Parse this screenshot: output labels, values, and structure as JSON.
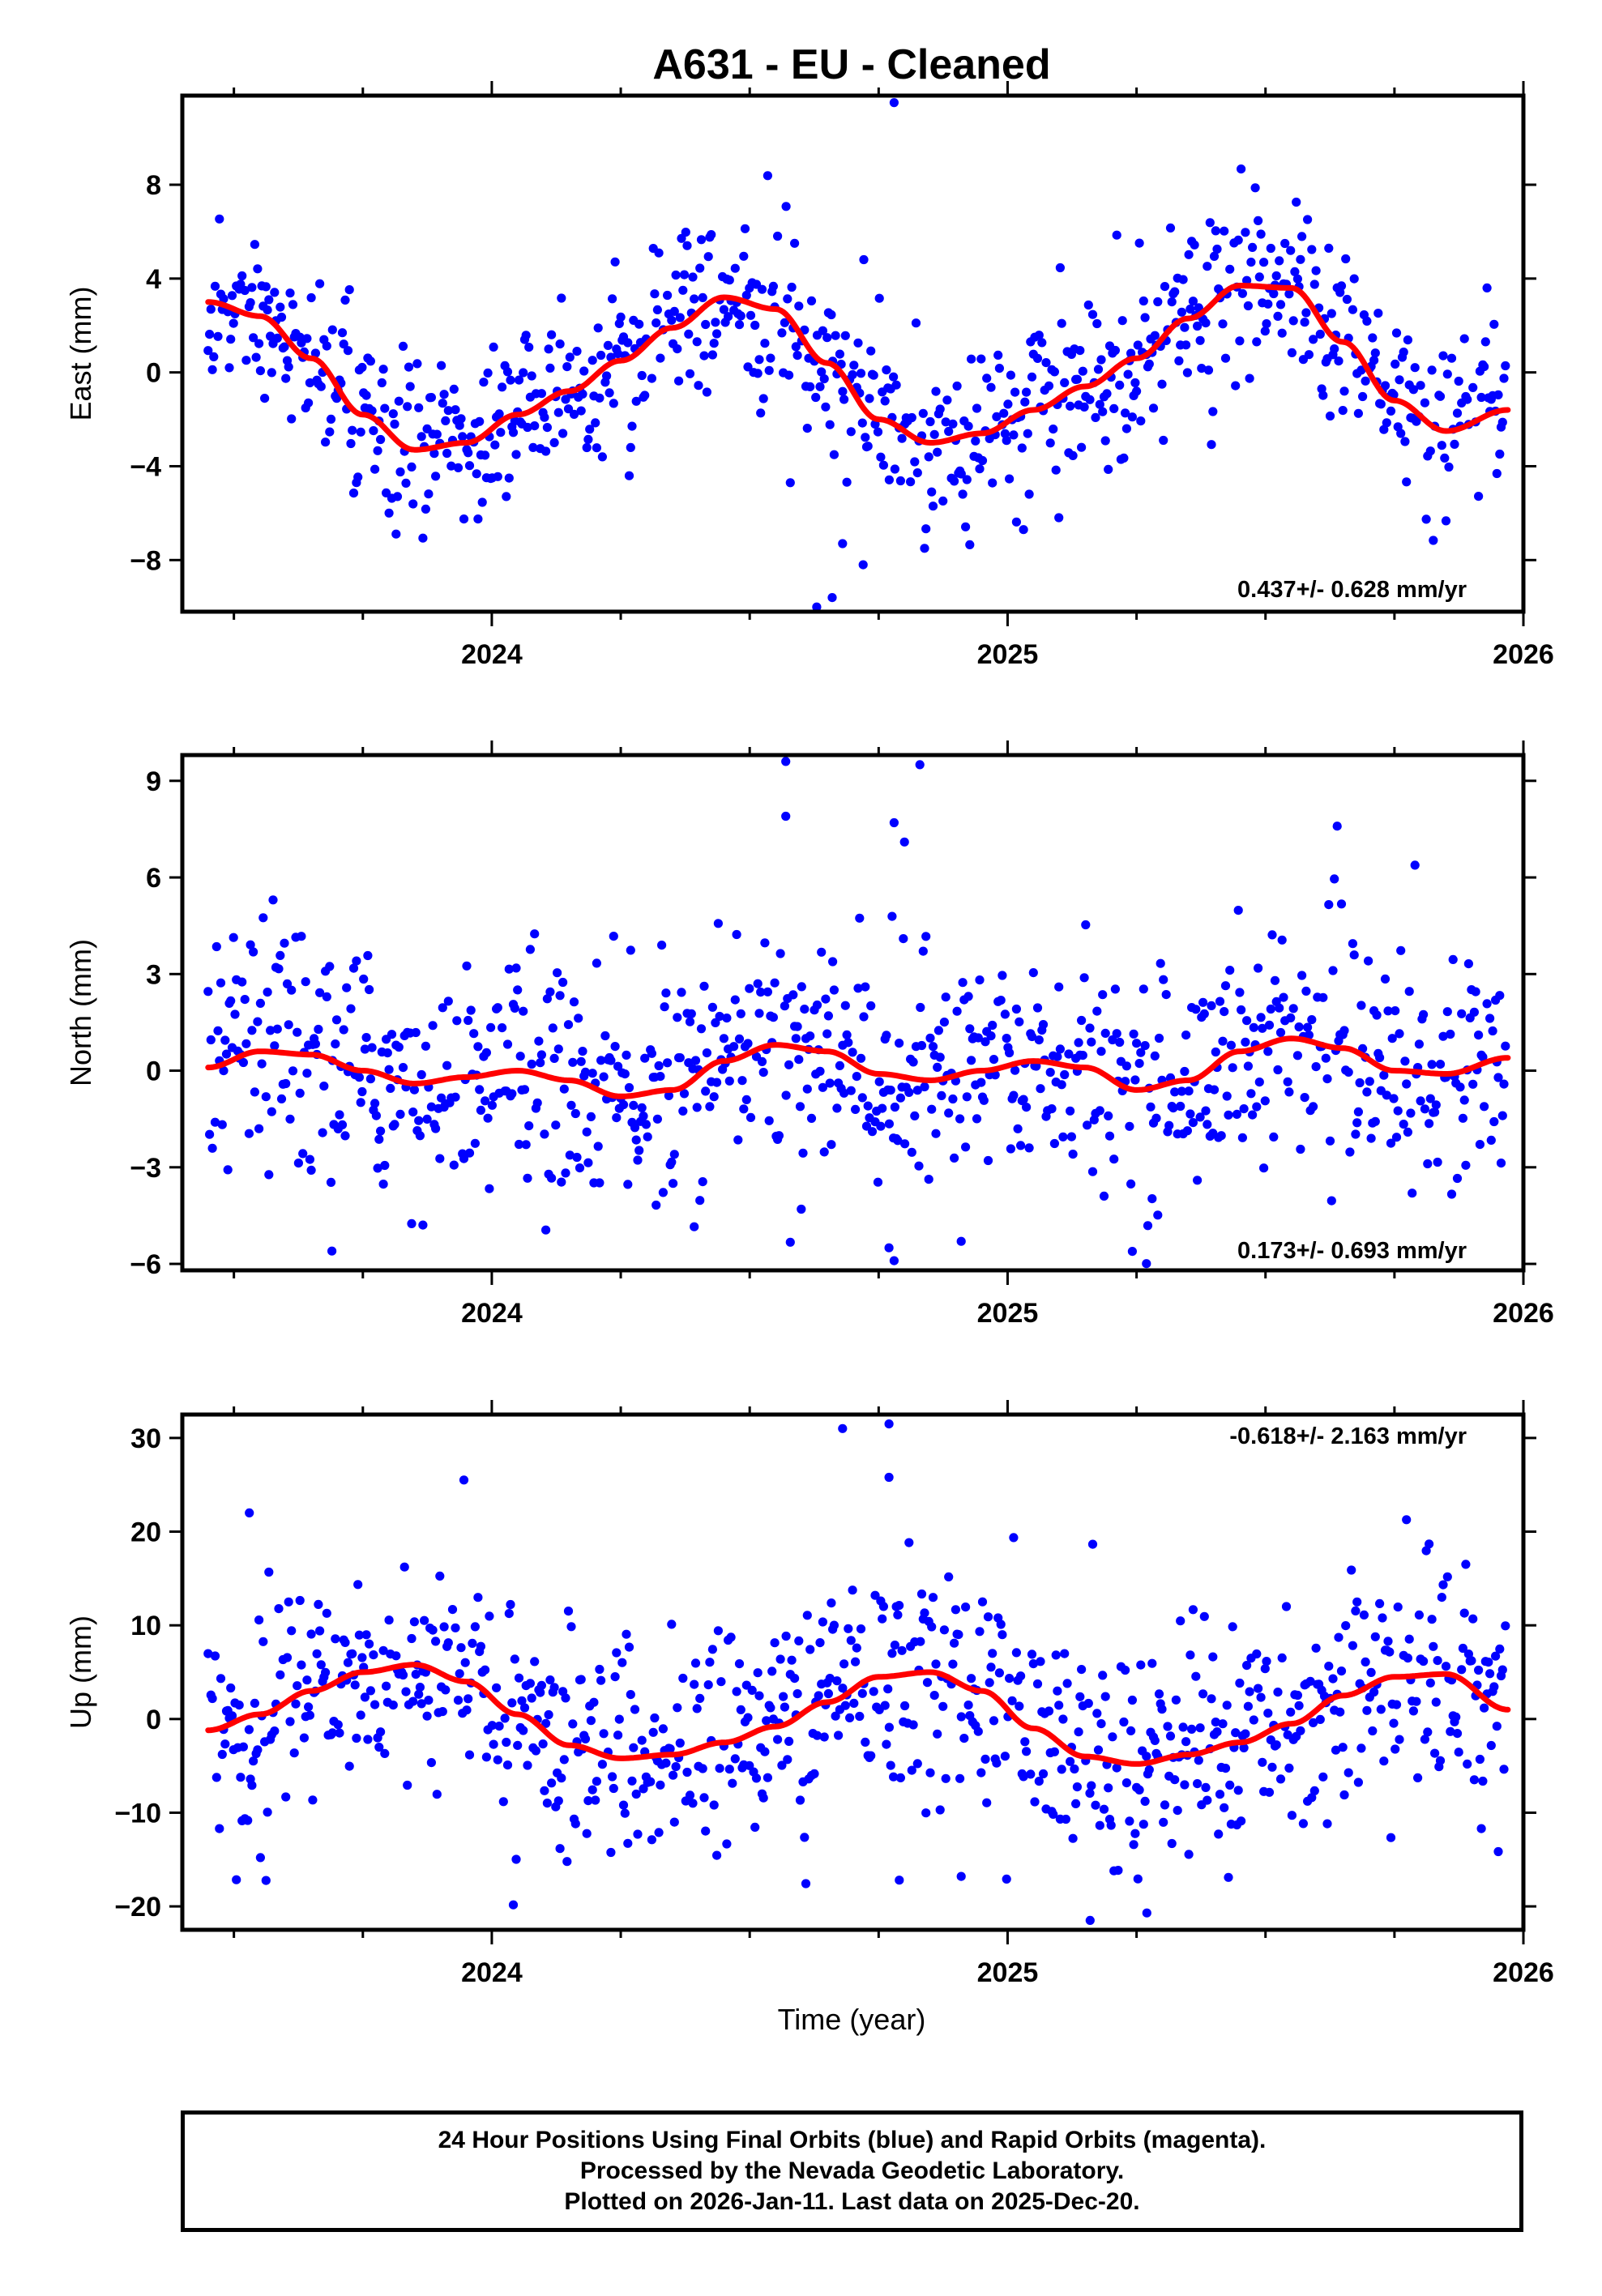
{
  "title": "A631  - EU - Cleaned",
  "colors": {
    "points": "#0000ff",
    "fit": "#ff0000",
    "frame": "#000000"
  },
  "x_axis": {
    "label": "Time (year)",
    "range": [
      2023.4,
      2026.0
    ],
    "ticks": [
      "2024",
      "2025",
      "2026"
    ]
  },
  "chart_data": [
    {
      "type": "scatter",
      "name": "east",
      "ylabel": "East (mm)",
      "ylim": [
        -10.2,
        11.8
      ],
      "yticks": [
        -8,
        -4,
        0,
        4,
        8
      ],
      "ytick_labels": [
        "−8",
        "−4",
        "0",
        "4",
        "8"
      ],
      "rate_text": "0.437+/- 0.628 mm/yr",
      "fit_knots": [
        [
          2023.45,
          3.0
        ],
        [
          2023.55,
          2.4
        ],
        [
          2023.65,
          0.6
        ],
        [
          2023.75,
          -1.8
        ],
        [
          2023.85,
          -3.3
        ],
        [
          2023.95,
          -3.0
        ],
        [
          2024.05,
          -1.8
        ],
        [
          2024.15,
          -0.8
        ],
        [
          2024.25,
          0.5
        ],
        [
          2024.35,
          1.9
        ],
        [
          2024.45,
          3.2
        ],
        [
          2024.55,
          2.7
        ],
        [
          2024.65,
          0.4
        ],
        [
          2024.75,
          -2.0
        ],
        [
          2024.85,
          -3.0
        ],
        [
          2024.95,
          -2.6
        ],
        [
          2025.05,
          -1.6
        ],
        [
          2025.15,
          -0.6
        ],
        [
          2025.25,
          0.6
        ],
        [
          2025.35,
          2.3
        ],
        [
          2025.45,
          3.7
        ],
        [
          2025.55,
          3.6
        ],
        [
          2025.65,
          1.3
        ],
        [
          2025.75,
          -1.2
        ],
        [
          2025.85,
          -2.5
        ],
        [
          2025.97,
          -1.6
        ]
      ],
      "noise": 1.9,
      "extra_points": [
        [
          2024.78,
          11.5
        ],
        [
          2024.63,
          -10.0
        ],
        [
          2024.66,
          -9.6
        ],
        [
          2024.72,
          -8.2
        ],
        [
          2024.68,
          -7.3
        ]
      ]
    },
    {
      "type": "scatter",
      "name": "north",
      "ylabel": "North (mm)",
      "ylim": [
        -6.2,
        9.8
      ],
      "yticks": [
        -6,
        -3,
        0,
        3,
        6,
        9
      ],
      "ytick_labels": [
        "−6",
        "−3",
        "0",
        "3",
        "6",
        "9"
      ],
      "rate_text": "0.173+/- 0.693 mm/yr",
      "fit_knots": [
        [
          2023.45,
          0.1
        ],
        [
          2023.55,
          0.6
        ],
        [
          2023.65,
          0.5
        ],
        [
          2023.75,
          0.0
        ],
        [
          2023.85,
          -0.4
        ],
        [
          2023.95,
          -0.2
        ],
        [
          2024.05,
          0.0
        ],
        [
          2024.15,
          -0.3
        ],
        [
          2024.25,
          -0.8
        ],
        [
          2024.35,
          -0.6
        ],
        [
          2024.45,
          0.3
        ],
        [
          2024.55,
          0.8
        ],
        [
          2024.65,
          0.6
        ],
        [
          2024.75,
          -0.1
        ],
        [
          2024.85,
          -0.3
        ],
        [
          2024.95,
          0.0
        ],
        [
          2025.05,
          0.3
        ],
        [
          2025.15,
          0.1
        ],
        [
          2025.25,
          -0.6
        ],
        [
          2025.35,
          -0.3
        ],
        [
          2025.45,
          0.6
        ],
        [
          2025.55,
          1.0
        ],
        [
          2025.65,
          0.7
        ],
        [
          2025.75,
          0.0
        ],
        [
          2025.85,
          -0.1
        ],
        [
          2025.97,
          0.4
        ]
      ],
      "noise": 1.8,
      "extra_points": [
        [
          2024.57,
          9.6
        ],
        [
          2024.83,
          9.5
        ],
        [
          2024.57,
          7.9
        ],
        [
          2024.78,
          7.7
        ],
        [
          2024.8,
          7.1
        ],
        [
          2023.69,
          -5.6
        ],
        [
          2024.78,
          -5.9
        ],
        [
          2024.77,
          -5.5
        ],
        [
          2024.91,
          -5.3
        ],
        [
          2024.6,
          -4.3
        ]
      ]
    },
    {
      "type": "scatter",
      "name": "up",
      "ylabel": "Up (mm)",
      "ylim": [
        -22.5,
        32.5
      ],
      "yticks": [
        -20,
        -10,
        0,
        10,
        20,
        30
      ],
      "ytick_labels": [
        "−20",
        "−10",
        "0",
        "10",
        "20",
        "30"
      ],
      "rate_text": "-0.618+/- 2.163 mm/yr",
      "fit_knots": [
        [
          2023.45,
          -1.2
        ],
        [
          2023.55,
          0.5
        ],
        [
          2023.65,
          3.0
        ],
        [
          2023.75,
          5.0
        ],
        [
          2023.85,
          5.8
        ],
        [
          2023.95,
          4.0
        ],
        [
          2024.05,
          0.5
        ],
        [
          2024.15,
          -2.8
        ],
        [
          2024.25,
          -4.2
        ],
        [
          2024.35,
          -3.8
        ],
        [
          2024.45,
          -2.5
        ],
        [
          2024.55,
          -0.8
        ],
        [
          2024.65,
          1.8
        ],
        [
          2024.75,
          4.5
        ],
        [
          2024.85,
          5.0
        ],
        [
          2024.95,
          3.0
        ],
        [
          2025.05,
          -1.0
        ],
        [
          2025.15,
          -4.0
        ],
        [
          2025.25,
          -4.8
        ],
        [
          2025.35,
          -3.8
        ],
        [
          2025.45,
          -2.5
        ],
        [
          2025.55,
          -0.5
        ],
        [
          2025.65,
          2.5
        ],
        [
          2025.75,
          4.5
        ],
        [
          2025.85,
          4.8
        ],
        [
          2025.97,
          1.0
        ]
      ],
      "noise": 6.0,
      "extra_points": [
        [
          2024.68,
          31.0
        ],
        [
          2024.77,
          31.5
        ],
        [
          2024.77,
          25.8
        ],
        [
          2023.53,
          22.0
        ],
        [
          2025.16,
          -21.5
        ],
        [
          2025.27,
          -20.7
        ],
        [
          2024.79,
          -17.2
        ],
        [
          2024.91,
          -16.8
        ]
      ]
    }
  ],
  "footer": {
    "line1": "24 Hour Positions Using Final Orbits (blue) and Rapid Orbits (magenta).",
    "line2": "Processed by the Nevada Geodetic Laboratory.",
    "line3": "Plotted on 2026-Jan-11. Last data on 2025-Dec-20."
  }
}
